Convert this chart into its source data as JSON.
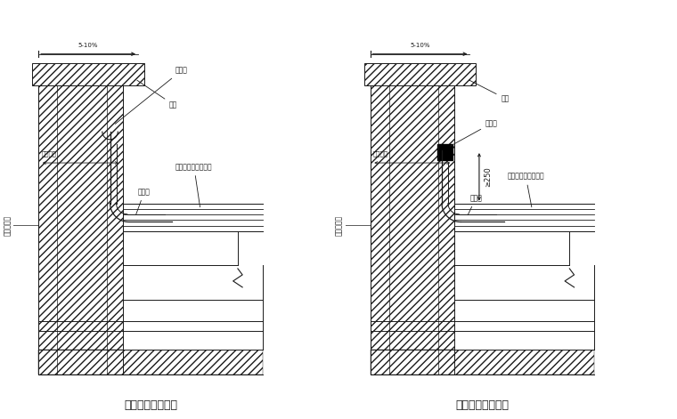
{
  "bg_color": "#ffffff",
  "line_color": "#1a1a1a",
  "title1": "女儿墙泛水（一）",
  "title2": "女儿墙泛水（二）",
  "label_mifenggao1": "密封膏",
  "label_yingzui1": "鹰嘴",
  "label_nvqianghou1": "女儿墙压",
  "label_wumian1": "屋面构造接工程设计",
  "label_fujiajie1": "附加层",
  "label_waiqiang1": "外墙饰面砖",
  "label_510_1": "5-10%",
  "label_mifenggao2": "密封膏",
  "label_yingzui2": "鹰嘴",
  "label_nvqianghou2": "女儿墙压",
  "label_wumian2": "屋面构造接工程设计",
  "label_fujiajie2": "附加层",
  "label_waiqiang2": "外墙饰面砖",
  "label_510_2": "5-10%",
  "label_250": "≥250"
}
